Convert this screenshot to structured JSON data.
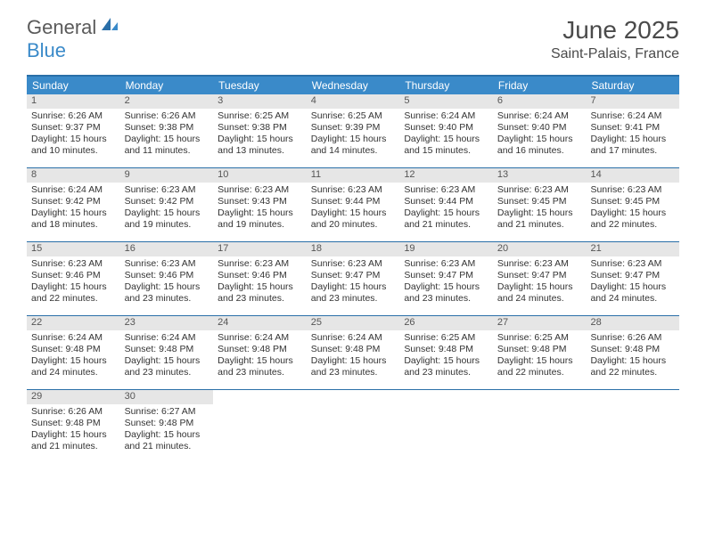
{
  "brand": {
    "word1": "General",
    "word2": "Blue"
  },
  "title": "June 2025",
  "location": "Saint-Palais, France",
  "colors": {
    "header_bg": "#3a8ac9",
    "header_border": "#2a6fa8",
    "daynum_bg": "#e6e6e6",
    "text": "#333333",
    "brand_gray": "#5a5a5a",
    "brand_blue": "#3a8ac9"
  },
  "day_names": [
    "Sunday",
    "Monday",
    "Tuesday",
    "Wednesday",
    "Thursday",
    "Friday",
    "Saturday"
  ],
  "weeks": [
    [
      {
        "n": "1",
        "sunrise": "Sunrise: 6:26 AM",
        "sunset": "Sunset: 9:37 PM",
        "daylight": "Daylight: 15 hours and 10 minutes."
      },
      {
        "n": "2",
        "sunrise": "Sunrise: 6:26 AM",
        "sunset": "Sunset: 9:38 PM",
        "daylight": "Daylight: 15 hours and 11 minutes."
      },
      {
        "n": "3",
        "sunrise": "Sunrise: 6:25 AM",
        "sunset": "Sunset: 9:38 PM",
        "daylight": "Daylight: 15 hours and 13 minutes."
      },
      {
        "n": "4",
        "sunrise": "Sunrise: 6:25 AM",
        "sunset": "Sunset: 9:39 PM",
        "daylight": "Daylight: 15 hours and 14 minutes."
      },
      {
        "n": "5",
        "sunrise": "Sunrise: 6:24 AM",
        "sunset": "Sunset: 9:40 PM",
        "daylight": "Daylight: 15 hours and 15 minutes."
      },
      {
        "n": "6",
        "sunrise": "Sunrise: 6:24 AM",
        "sunset": "Sunset: 9:40 PM",
        "daylight": "Daylight: 15 hours and 16 minutes."
      },
      {
        "n": "7",
        "sunrise": "Sunrise: 6:24 AM",
        "sunset": "Sunset: 9:41 PM",
        "daylight": "Daylight: 15 hours and 17 minutes."
      }
    ],
    [
      {
        "n": "8",
        "sunrise": "Sunrise: 6:24 AM",
        "sunset": "Sunset: 9:42 PM",
        "daylight": "Daylight: 15 hours and 18 minutes."
      },
      {
        "n": "9",
        "sunrise": "Sunrise: 6:23 AM",
        "sunset": "Sunset: 9:42 PM",
        "daylight": "Daylight: 15 hours and 19 minutes."
      },
      {
        "n": "10",
        "sunrise": "Sunrise: 6:23 AM",
        "sunset": "Sunset: 9:43 PM",
        "daylight": "Daylight: 15 hours and 19 minutes."
      },
      {
        "n": "11",
        "sunrise": "Sunrise: 6:23 AM",
        "sunset": "Sunset: 9:44 PM",
        "daylight": "Daylight: 15 hours and 20 minutes."
      },
      {
        "n": "12",
        "sunrise": "Sunrise: 6:23 AM",
        "sunset": "Sunset: 9:44 PM",
        "daylight": "Daylight: 15 hours and 21 minutes."
      },
      {
        "n": "13",
        "sunrise": "Sunrise: 6:23 AM",
        "sunset": "Sunset: 9:45 PM",
        "daylight": "Daylight: 15 hours and 21 minutes."
      },
      {
        "n": "14",
        "sunrise": "Sunrise: 6:23 AM",
        "sunset": "Sunset: 9:45 PM",
        "daylight": "Daylight: 15 hours and 22 minutes."
      }
    ],
    [
      {
        "n": "15",
        "sunrise": "Sunrise: 6:23 AM",
        "sunset": "Sunset: 9:46 PM",
        "daylight": "Daylight: 15 hours and 22 minutes."
      },
      {
        "n": "16",
        "sunrise": "Sunrise: 6:23 AM",
        "sunset": "Sunset: 9:46 PM",
        "daylight": "Daylight: 15 hours and 23 minutes."
      },
      {
        "n": "17",
        "sunrise": "Sunrise: 6:23 AM",
        "sunset": "Sunset: 9:46 PM",
        "daylight": "Daylight: 15 hours and 23 minutes."
      },
      {
        "n": "18",
        "sunrise": "Sunrise: 6:23 AM",
        "sunset": "Sunset: 9:47 PM",
        "daylight": "Daylight: 15 hours and 23 minutes."
      },
      {
        "n": "19",
        "sunrise": "Sunrise: 6:23 AM",
        "sunset": "Sunset: 9:47 PM",
        "daylight": "Daylight: 15 hours and 23 minutes."
      },
      {
        "n": "20",
        "sunrise": "Sunrise: 6:23 AM",
        "sunset": "Sunset: 9:47 PM",
        "daylight": "Daylight: 15 hours and 24 minutes."
      },
      {
        "n": "21",
        "sunrise": "Sunrise: 6:23 AM",
        "sunset": "Sunset: 9:47 PM",
        "daylight": "Daylight: 15 hours and 24 minutes."
      }
    ],
    [
      {
        "n": "22",
        "sunrise": "Sunrise: 6:24 AM",
        "sunset": "Sunset: 9:48 PM",
        "daylight": "Daylight: 15 hours and 24 minutes."
      },
      {
        "n": "23",
        "sunrise": "Sunrise: 6:24 AM",
        "sunset": "Sunset: 9:48 PM",
        "daylight": "Daylight: 15 hours and 23 minutes."
      },
      {
        "n": "24",
        "sunrise": "Sunrise: 6:24 AM",
        "sunset": "Sunset: 9:48 PM",
        "daylight": "Daylight: 15 hours and 23 minutes."
      },
      {
        "n": "25",
        "sunrise": "Sunrise: 6:24 AM",
        "sunset": "Sunset: 9:48 PM",
        "daylight": "Daylight: 15 hours and 23 minutes."
      },
      {
        "n": "26",
        "sunrise": "Sunrise: 6:25 AM",
        "sunset": "Sunset: 9:48 PM",
        "daylight": "Daylight: 15 hours and 23 minutes."
      },
      {
        "n": "27",
        "sunrise": "Sunrise: 6:25 AM",
        "sunset": "Sunset: 9:48 PM",
        "daylight": "Daylight: 15 hours and 22 minutes."
      },
      {
        "n": "28",
        "sunrise": "Sunrise: 6:26 AM",
        "sunset": "Sunset: 9:48 PM",
        "daylight": "Daylight: 15 hours and 22 minutes."
      }
    ],
    [
      {
        "n": "29",
        "sunrise": "Sunrise: 6:26 AM",
        "sunset": "Sunset: 9:48 PM",
        "daylight": "Daylight: 15 hours and 21 minutes."
      },
      {
        "n": "30",
        "sunrise": "Sunrise: 6:27 AM",
        "sunset": "Sunset: 9:48 PM",
        "daylight": "Daylight: 15 hours and 21 minutes."
      },
      null,
      null,
      null,
      null,
      null
    ]
  ]
}
